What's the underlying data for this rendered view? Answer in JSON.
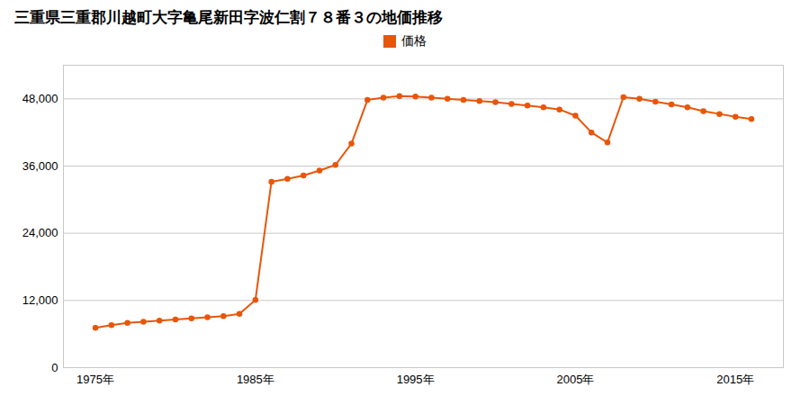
{
  "chart_data": {
    "type": "line",
    "title": "三重県三重郡川越町大字亀尾新田字波仁割７８番３の地価推移",
    "x": [
      1975,
      1976,
      1977,
      1978,
      1979,
      1980,
      1981,
      1982,
      1983,
      1984,
      1985,
      1986,
      1987,
      1988,
      1989,
      1990,
      1991,
      1992,
      1993,
      1994,
      1995,
      1996,
      1997,
      1998,
      1999,
      2000,
      2001,
      2002,
      2003,
      2004,
      2005,
      2006,
      2007,
      2008,
      2009,
      2010,
      2011,
      2012,
      2013,
      2014,
      2015,
      2016
    ],
    "series": [
      {
        "name": "価格",
        "color": "#e8560a",
        "marker": "circle",
        "values": [
          7100,
          7600,
          8000,
          8200,
          8400,
          8600,
          8800,
          9000,
          9200,
          9600,
          12100,
          33200,
          33700,
          34300,
          35200,
          36200,
          40000,
          47800,
          48200,
          48500,
          48400,
          48200,
          48000,
          47800,
          47600,
          47400,
          47100,
          46800,
          46500,
          46100,
          45000,
          42000,
          40200,
          48300,
          48000,
          47500,
          47000,
          46500,
          45800,
          45300,
          44800,
          44400
        ]
      }
    ],
    "xlim": [
      1973,
      2018
    ],
    "xticks": [
      {
        "value": 1975,
        "label": "1975年"
      },
      {
        "value": 1985,
        "label": "1985年"
      },
      {
        "value": 1995,
        "label": "1995年"
      },
      {
        "value": 2005,
        "label": "2005年"
      },
      {
        "value": 2015,
        "label": "2015年"
      }
    ],
    "ylim": [
      0,
      54000
    ],
    "yticks": [
      0,
      {
        "value": 12000,
        "label": "12,000"
      },
      {
        "value": 24000,
        "label": "24,000"
      },
      {
        "value": 36000,
        "label": "36,000"
      },
      {
        "value": 48000,
        "label": "48,000"
      }
    ],
    "grid": true,
    "legend": "top"
  }
}
